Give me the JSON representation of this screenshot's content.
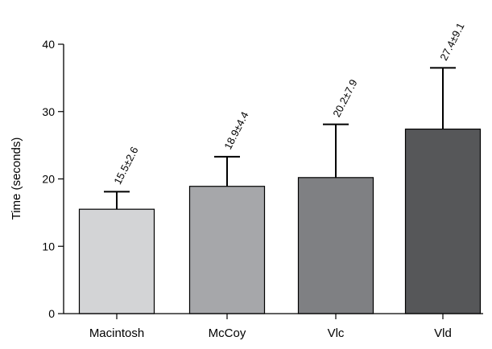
{
  "chart_data": {
    "type": "bar",
    "title": "",
    "xlabel": "",
    "ylabel": "Time (seconds)",
    "ylim": [
      0,
      40
    ],
    "yticks": [
      0,
      10,
      20,
      30,
      40
    ],
    "grid": false,
    "legend": "none",
    "categories": [
      "Macintosh",
      "McCoy",
      "Vlc",
      "Vld"
    ],
    "values": [
      15.5,
      18.9,
      20.2,
      27.4
    ],
    "errors": [
      2.6,
      4.4,
      7.9,
      9.1
    ],
    "data_labels": [
      "15.5±2.6",
      "18.9±4.4",
      "20.2±7.9",
      "27.4±9.1"
    ],
    "bar_colors": [
      "#d3d4d6",
      "#a6a7aa",
      "#7f8083",
      "#565759"
    ],
    "error_bar": "upper-only"
  }
}
